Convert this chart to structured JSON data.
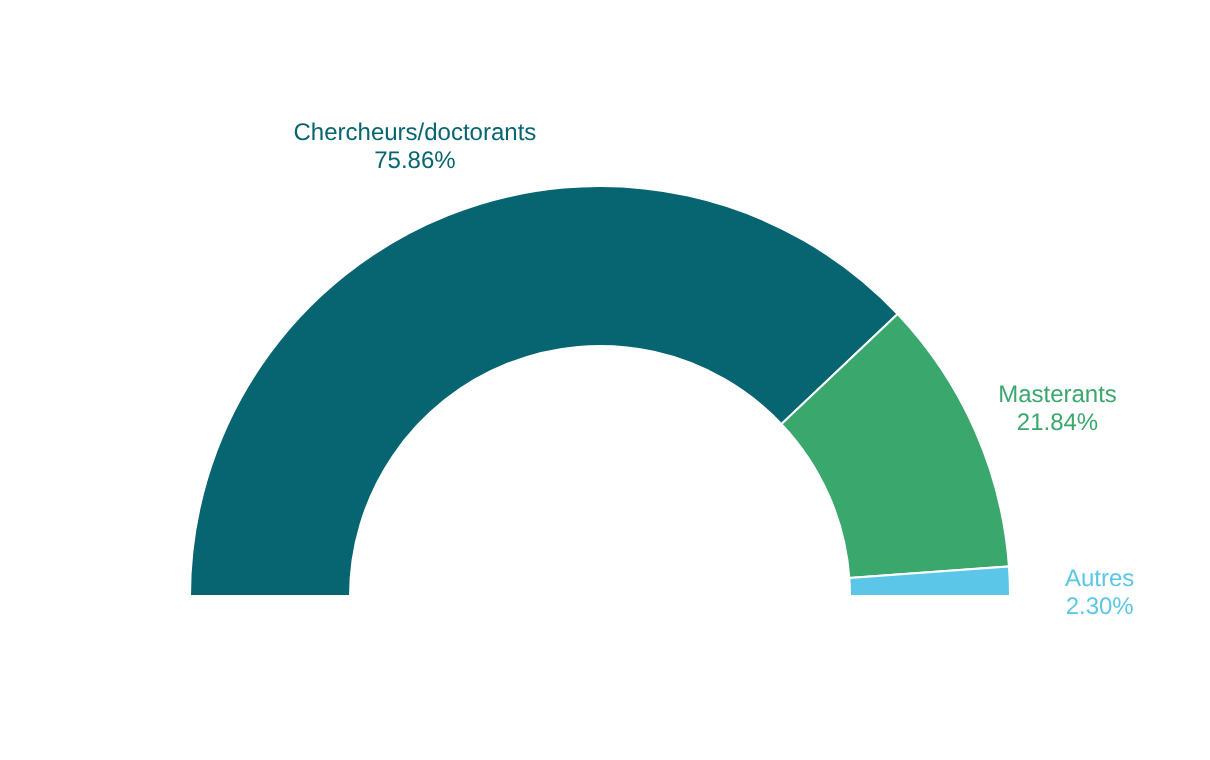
{
  "chart_data": {
    "type": "donut",
    "categories": [
      "Chercheurs/doctorants",
      "Masterants",
      "Autres"
    ],
    "values": [
      75.86,
      21.84,
      2.3
    ],
    "colors": [
      "#066570",
      "#3aa76d",
      "#5bc6e8"
    ],
    "value_labels": [
      "75.86%",
      "21.84%",
      "2.30%"
    ]
  }
}
